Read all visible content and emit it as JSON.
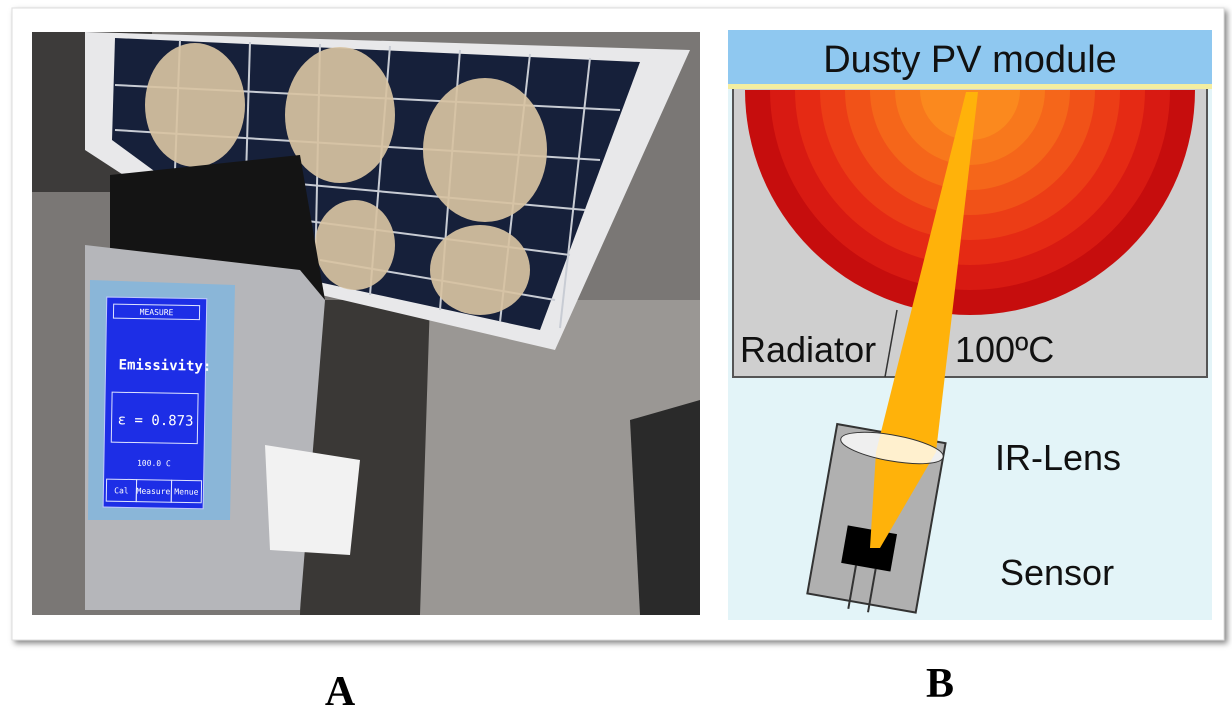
{
  "photo": {
    "label": "A",
    "screen": {
      "header": "MEASURE",
      "title": "Emissivity:",
      "reading": "ε = 0.873",
      "temperature": "100.0 C",
      "buttons": [
        "Cal",
        "Measure",
        "Menue"
      ]
    }
  },
  "diagram": {
    "label": "B",
    "module": "Dusty PV module",
    "radiator": "Radiator",
    "temperature": "100ºC",
    "lens": "IR-Lens",
    "sensor": "Sensor"
  }
}
